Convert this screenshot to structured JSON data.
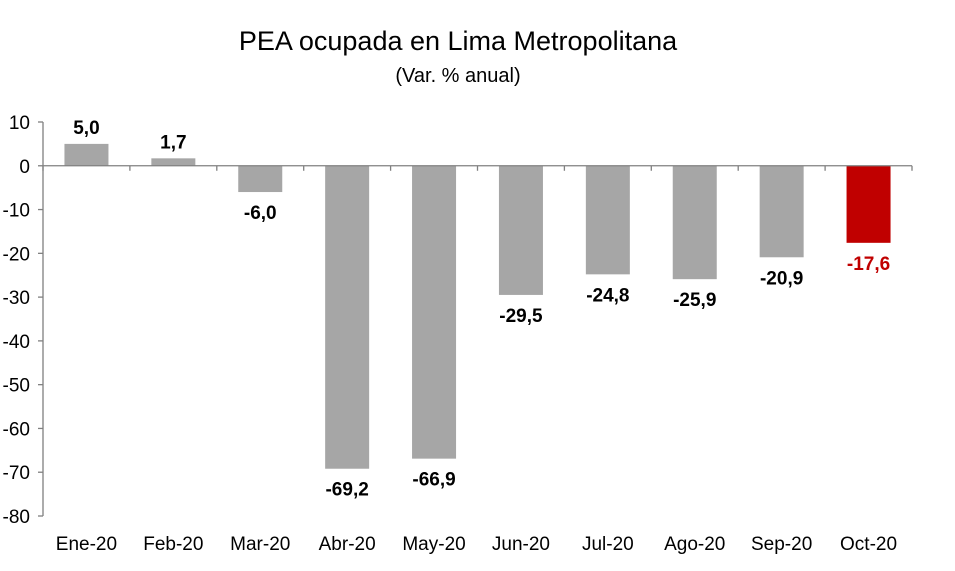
{
  "chart_data": {
    "type": "bar",
    "title": "PEA ocupada en Lima Metropolitana",
    "subtitle": "(Var. % anual)",
    "xlabel": "",
    "ylabel": "",
    "categories": [
      "Ene-20",
      "Feb-20",
      "Mar-20",
      "Abr-20",
      "May-20",
      "Jun-20",
      "Jul-20",
      "Ago-20",
      "Sep-20",
      "Oct-20"
    ],
    "values": [
      5.0,
      1.7,
      -6.0,
      -69.2,
      -66.9,
      -29.5,
      -24.8,
      -25.9,
      -20.9,
      -17.6
    ],
    "data_labels": [
      "5,0",
      "1,7",
      "-6,0",
      "-69,2",
      "-66,9",
      "-29,5",
      "-24,8",
      "-25,9",
      "-20,9",
      "-17,6"
    ],
    "ylim": [
      -80,
      10
    ],
    "yticks": [
      10,
      0,
      -10,
      -20,
      -30,
      -40,
      -50,
      -60,
      -70,
      -80
    ],
    "grid": false,
    "legend": "none",
    "colors": {
      "default": "#a6a6a6",
      "highlight": "#c00000",
      "highlight_index": 9,
      "label_default": "#000000",
      "label_highlight": "#c00000"
    }
  }
}
